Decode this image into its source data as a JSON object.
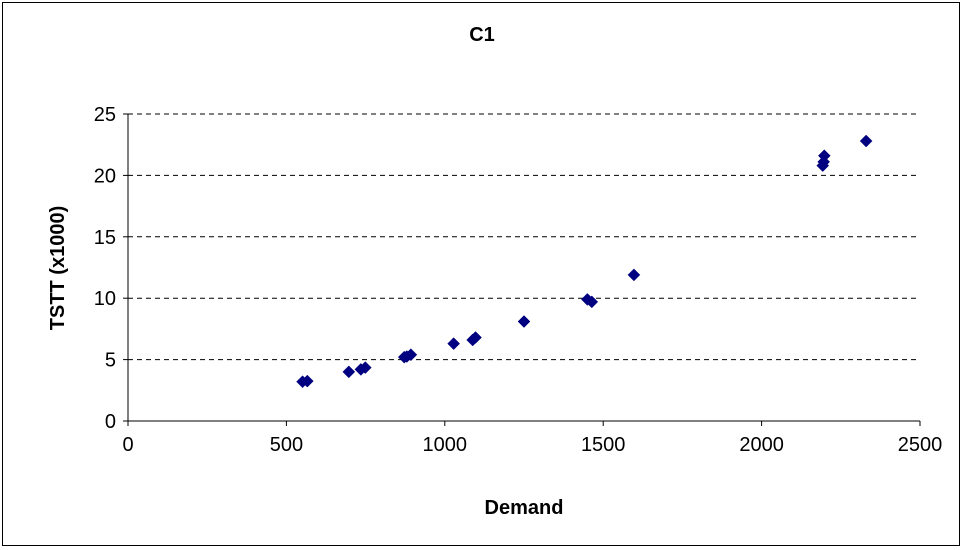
{
  "chart_data": {
    "type": "scatter",
    "title": "C1",
    "xlabel": "Demand",
    "ylabel": "TSTT (x1000)",
    "xlim": [
      0,
      2500
    ],
    "ylim": [
      0,
      25
    ],
    "xticks": [
      0,
      500,
      1000,
      1500,
      2000,
      2500
    ],
    "yticks": [
      0,
      5,
      10,
      15,
      20,
      25
    ],
    "grid": "horizontal-dashed",
    "legend": "none",
    "marker_color": "#000080",
    "series": [
      {
        "points": [
          [
            551,
            3.2
          ],
          [
            566,
            3.25
          ],
          [
            697,
            4.0
          ],
          [
            735,
            4.2
          ],
          [
            749,
            4.35
          ],
          [
            872,
            5.2
          ],
          [
            880,
            5.25
          ],
          [
            893,
            5.4
          ],
          [
            1028,
            6.3
          ],
          [
            1088,
            6.6
          ],
          [
            1097,
            6.8
          ],
          [
            1250,
            8.1
          ],
          [
            1450,
            9.9
          ],
          [
            1464,
            9.7
          ],
          [
            1597,
            11.9
          ],
          [
            2193,
            20.8
          ],
          [
            2196,
            21.1
          ],
          [
            2198,
            21.6
          ],
          [
            2330,
            22.8
          ]
        ]
      }
    ]
  }
}
